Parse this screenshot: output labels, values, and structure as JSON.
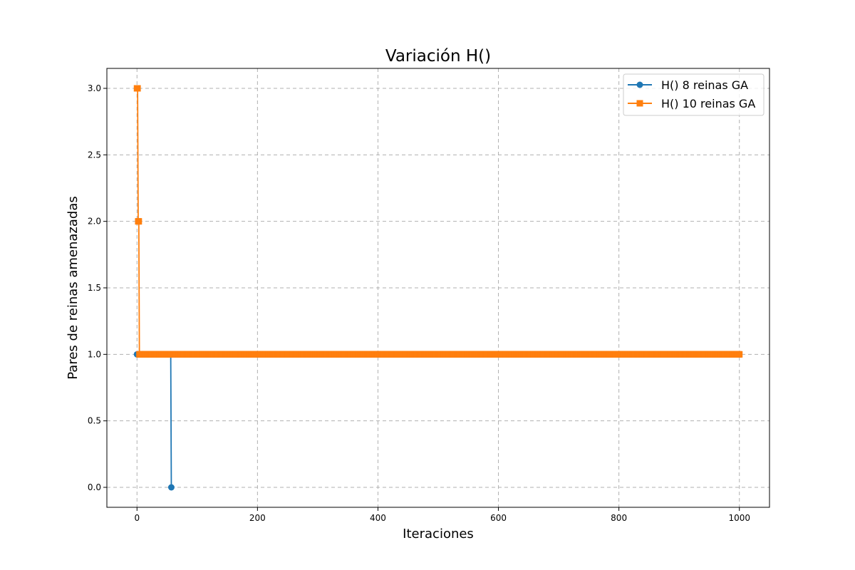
{
  "chart_data": {
    "type": "line",
    "title": "Variación H()",
    "xlabel": "Iteraciones",
    "ylabel": "Pares de reinas amenazadas",
    "xlim": [
      -50,
      1050
    ],
    "ylim": [
      -0.15,
      3.15
    ],
    "x_ticks": [
      0,
      200,
      400,
      600,
      800,
      1000
    ],
    "y_ticks": [
      0.0,
      0.5,
      1.0,
      1.5,
      2.0,
      2.5,
      3.0
    ],
    "x_tick_labels": [
      "0",
      "200",
      "400",
      "600",
      "800",
      "1000"
    ],
    "y_tick_labels": [
      "0.0",
      "0.5",
      "1.0",
      "1.5",
      "2.0",
      "2.5",
      "3.0"
    ],
    "grid": true,
    "legend_position": "top-right",
    "series": [
      {
        "name": "H() 8 reinas GA",
        "color": "#1f77b4",
        "marker": "circle",
        "points": [
          [
            0,
            1
          ],
          [
            1,
            1
          ],
          [
            2,
            1
          ],
          [
            3,
            1
          ],
          [
            5,
            1
          ],
          [
            10,
            1
          ],
          [
            15,
            1
          ],
          [
            20,
            1
          ],
          [
            25,
            1
          ],
          [
            30,
            1
          ],
          [
            35,
            1
          ],
          [
            40,
            1
          ],
          [
            45,
            1
          ],
          [
            50,
            1
          ],
          [
            55,
            1
          ],
          [
            56,
            1
          ],
          [
            57,
            0
          ]
        ]
      },
      {
        "name": "H() 10 reinas GA",
        "color": "#ff7f0e",
        "marker": "square",
        "points": [
          [
            0,
            3
          ],
          [
            1,
            3
          ],
          [
            2,
            2
          ],
          [
            3,
            2
          ],
          [
            4,
            1
          ],
          [
            1000,
            1
          ]
        ],
        "dense_range": [
          4,
          1000
        ]
      }
    ]
  }
}
